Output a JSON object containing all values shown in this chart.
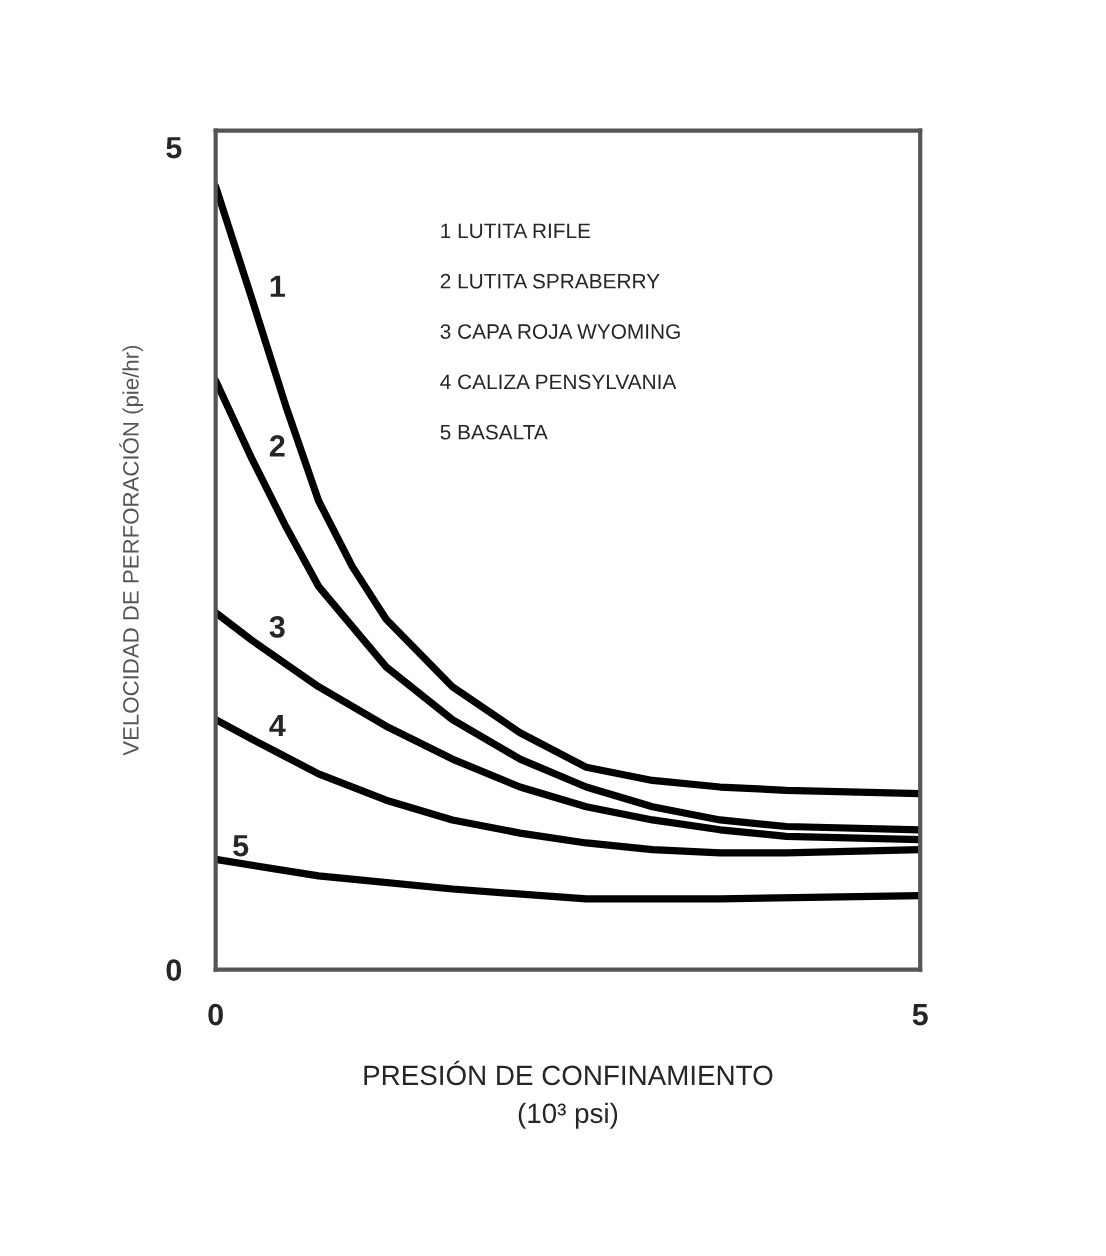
{
  "chart_data": {
    "type": "line",
    "xlabel": "PRESIÓN DE CONFINAMIENTO\n(10³ psi)",
    "ylabel": "VELOCIDAD DE PERFORACIÓN (pie/hr)",
    "xlim": [
      0,
      5
    ],
    "ylim": [
      0,
      5.1
    ],
    "xticks": [
      0,
      5
    ],
    "yticks": [
      0,
      5
    ],
    "grid": false,
    "legend": false,
    "marker": "none",
    "line_style": "solid",
    "series": [
      {
        "name": "1",
        "color": "#000000",
        "x": [
          0,
          0.26,
          0.5,
          0.73,
          0.97,
          1.21,
          1.68,
          2.16,
          2.63,
          3.1,
          3.58,
          4.05,
          5
        ],
        "values": [
          4.76,
          4.07,
          3.42,
          2.85,
          2.45,
          2.13,
          1.72,
          1.44,
          1.23,
          1.15,
          1.11,
          1.09,
          1.07
        ]
      },
      {
        "name": "2",
        "color": "#000000",
        "x": [
          0,
          0.26,
          0.5,
          0.73,
          1.21,
          1.68,
          2.16,
          2.63,
          3.1,
          3.58,
          4.05,
          5
        ],
        "values": [
          3.58,
          3.1,
          2.69,
          2.33,
          1.84,
          1.52,
          1.28,
          1.11,
          0.99,
          0.91,
          0.87,
          0.85
        ]
      },
      {
        "name": "3",
        "color": "#000000",
        "x": [
          0,
          0.26,
          0.73,
          1.21,
          1.68,
          2.16,
          2.63,
          3.1,
          3.58,
          4.05,
          5
        ],
        "values": [
          2.17,
          2.0,
          1.72,
          1.48,
          1.28,
          1.11,
          0.99,
          0.91,
          0.85,
          0.81,
          0.79
        ]
      },
      {
        "name": "4",
        "color": "#000000",
        "x": [
          0,
          0.26,
          0.73,
          1.21,
          1.68,
          2.16,
          2.63,
          3.1,
          3.58,
          4.05,
          5
        ],
        "values": [
          1.52,
          1.4,
          1.19,
          1.03,
          0.91,
          0.83,
          0.77,
          0.73,
          0.71,
          0.71,
          0.73
        ]
      },
      {
        "name": "5",
        "color": "#000000",
        "x": [
          0,
          0.73,
          1.68,
          2.63,
          3.58,
          5
        ],
        "values": [
          0.67,
          0.57,
          0.49,
          0.43,
          0.43,
          0.45
        ]
      }
    ],
    "annotations": [
      "1 LUTITA RIFLE",
      "2 LUTITA SPRABERRY",
      "3 CAPA ROJA WYOMING",
      "4 CALIZA PENSYLVANIA",
      "5 BASALTA"
    ]
  }
}
